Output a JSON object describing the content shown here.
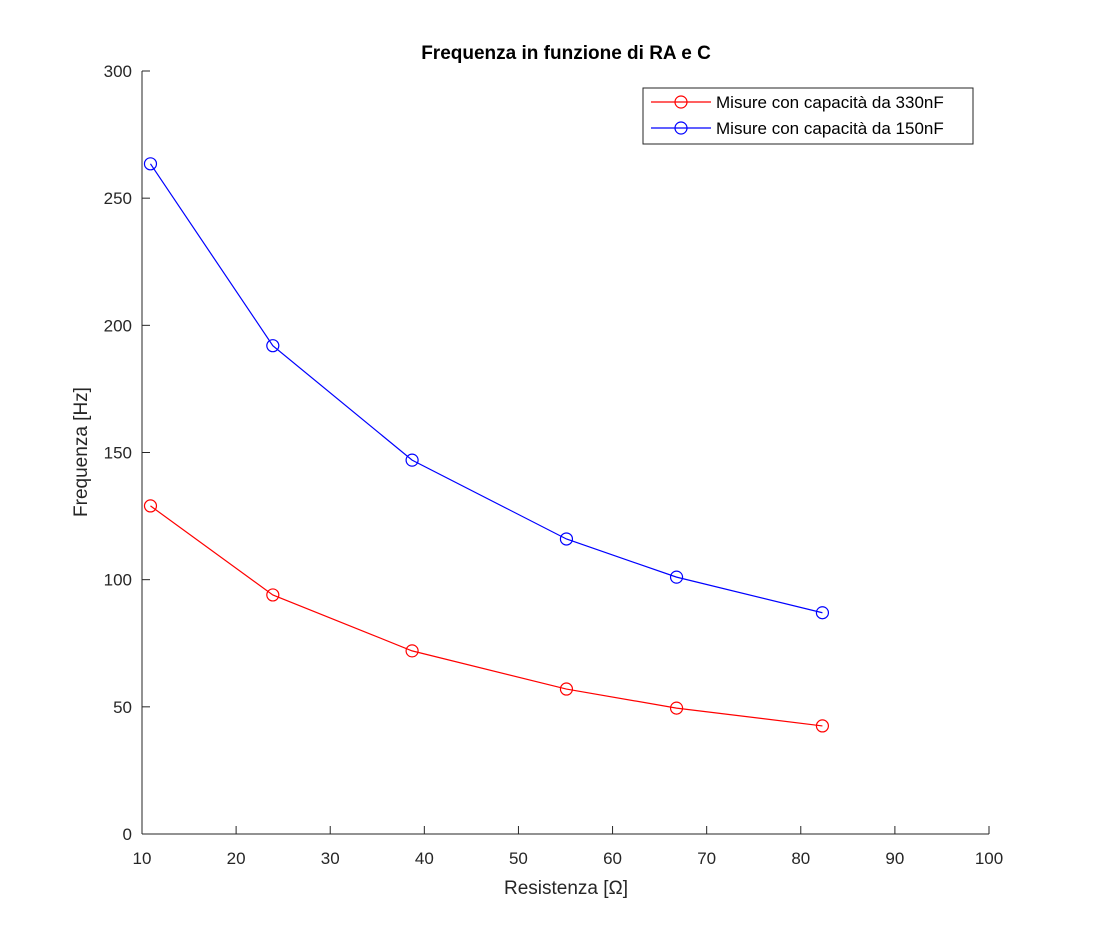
{
  "chart_data": {
    "type": "line",
    "title": "Frequenza in funzione di RA e C",
    "xlabel": "Resistenza [Ω]",
    "ylabel": "Frequenza [Hz]",
    "xlim": [
      10,
      100
    ],
    "ylim": [
      0,
      300
    ],
    "xticks": [
      10,
      20,
      30,
      40,
      50,
      60,
      70,
      80,
      90,
      100
    ],
    "yticks": [
      0,
      50,
      100,
      150,
      200,
      250,
      300
    ],
    "grid": false,
    "legend_position": "top-right",
    "series": [
      {
        "name": "Misure con capacità da 330nF",
        "color": "#ff0000",
        "marker": "circle",
        "x": [
          10.9,
          23.9,
          38.7,
          55.1,
          66.8,
          82.3
        ],
        "y": [
          129,
          94,
          72,
          57,
          49.5,
          42.5
        ]
      },
      {
        "name": "Misure con capacità da 150nF",
        "color": "#0000ff",
        "marker": "circle",
        "x": [
          10.9,
          23.9,
          38.7,
          55.1,
          66.8,
          82.3
        ],
        "y": [
          263.5,
          192,
          147,
          116,
          101,
          87
        ]
      }
    ]
  }
}
